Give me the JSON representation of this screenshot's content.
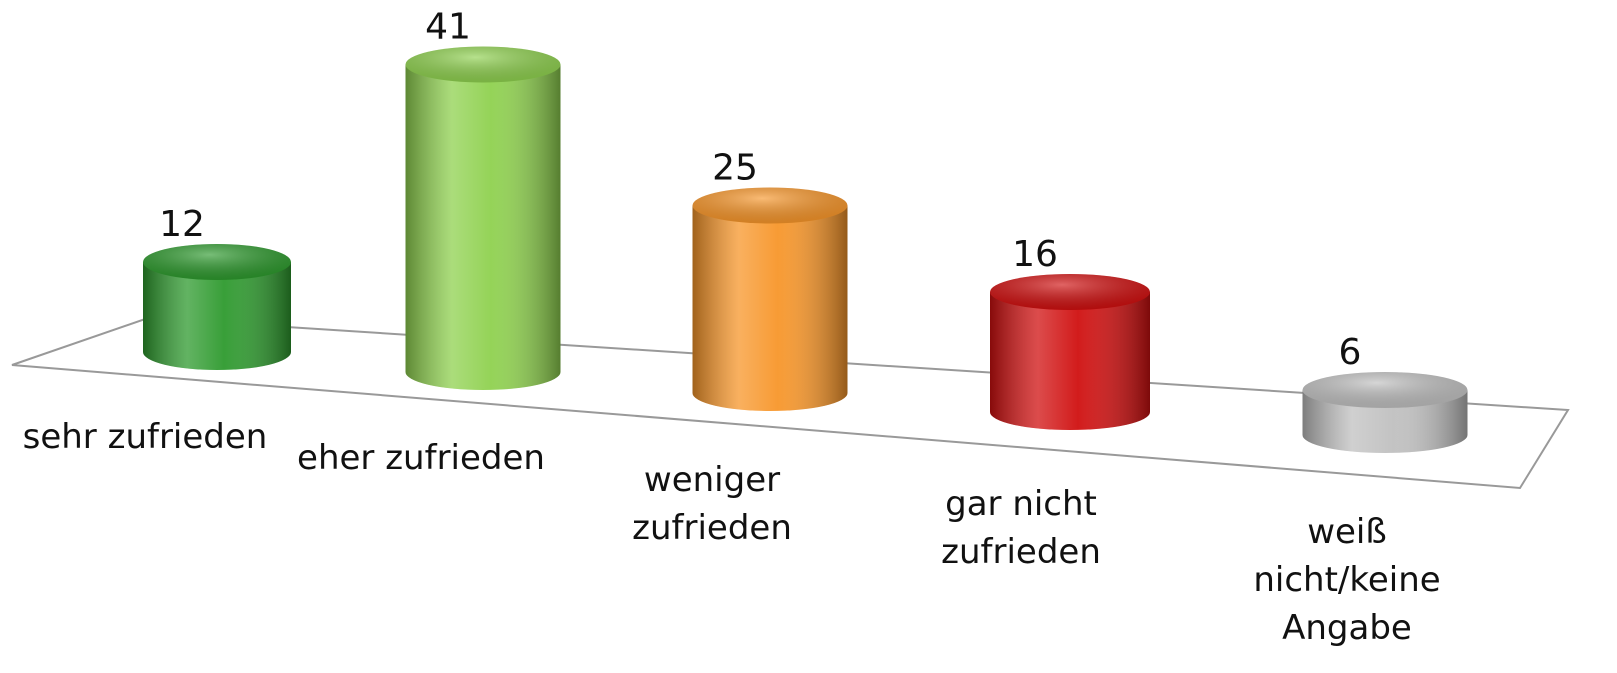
{
  "chart_data": {
    "type": "cylinder",
    "categories": [
      "sehr zufrieden",
      "eher zufrieden",
      "weniger zufrieden",
      "gar nicht zufrieden",
      "weiß nicht/keine Angabe"
    ],
    "values": [
      12,
      41,
      25,
      16,
      6
    ],
    "colors": [
      "#2e9a2e",
      "#8fd14f",
      "#f7962a",
      "#d01010",
      "#c0c0c0"
    ]
  }
}
